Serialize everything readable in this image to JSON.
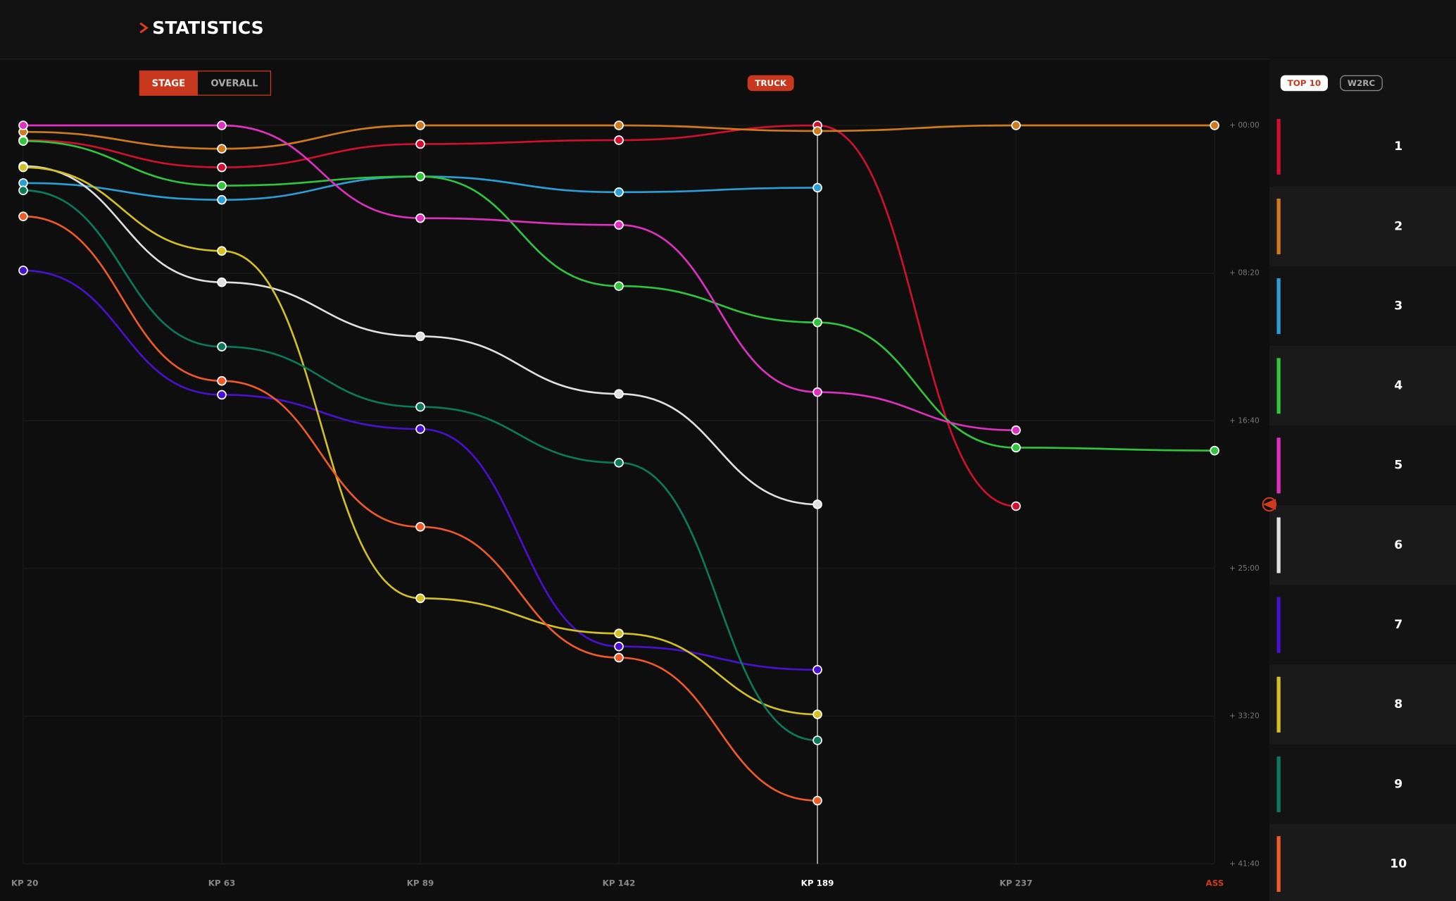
{
  "header": {
    "title": "STATISTICS"
  },
  "controls": {
    "stage": "STAGE",
    "overall": "OVERALL",
    "category": "TRUCK",
    "top": "TOP 10",
    "w2rc": "W2RC"
  },
  "chart_data": {
    "type": "line",
    "categories": [
      "KP 20",
      "KP 63",
      "KP 89",
      "KP 142",
      "KP 189",
      "KP 237",
      "ASS"
    ],
    "selected_x": "KP 189",
    "ylim": [
      0,
      2500
    ],
    "y_reversed": true,
    "yticks": [
      {
        "value": 0,
        "label": "+ 00:00"
      },
      {
        "value": 500,
        "label": "+ 08:20"
      },
      {
        "value": 1000,
        "label": "+ 16:40"
      },
      {
        "value": 1500,
        "label": "+ 25:00"
      },
      {
        "value": 2000,
        "label": "+ 33:20"
      },
      {
        "value": 2500,
        "label": "+ 41:40"
      }
    ],
    "grid": true,
    "series": [
      {
        "name": "1",
        "color": "#d0102e",
        "values": [
          50,
          142,
          63,
          50,
          0,
          1289,
          null
        ]
      },
      {
        "name": "2",
        "color": "#d07a1e",
        "values": [
          22,
          79,
          0,
          0,
          19,
          0,
          0
        ]
      },
      {
        "name": "3",
        "color": "#2a9fd6",
        "values": [
          195,
          252,
          173,
          226,
          211,
          null,
          null
        ]
      },
      {
        "name": "4",
        "color": "#2fc53c",
        "values": [
          53,
          204,
          173,
          544,
          667,
          1091,
          1101
        ]
      },
      {
        "name": "5",
        "color": "#e030c0",
        "values": [
          0,
          0,
          314,
          337,
          903,
          1032,
          null
        ]
      },
      {
        "name": "6",
        "color": "#e0e0e0",
        "values": [
          138,
          531,
          714,
          909,
          1283,
          null,
          null
        ]
      },
      {
        "name": "7",
        "color": "#4a10d0",
        "values": [
          491,
          912,
          1028,
          1764,
          1843,
          null,
          null
        ]
      },
      {
        "name": "8",
        "color": "#d4c020",
        "values": [
          142,
          425,
          1601,
          1720,
          1994,
          null,
          null
        ]
      },
      {
        "name": "9",
        "color": "#0a7a5a",
        "values": [
          220,
          749,
          953,
          1142,
          2082,
          null,
          null
        ]
      },
      {
        "name": "10",
        "color": "#f05a28",
        "values": [
          308,
          865,
          1359,
          1802,
          2286,
          null,
          null
        ]
      }
    ]
  }
}
